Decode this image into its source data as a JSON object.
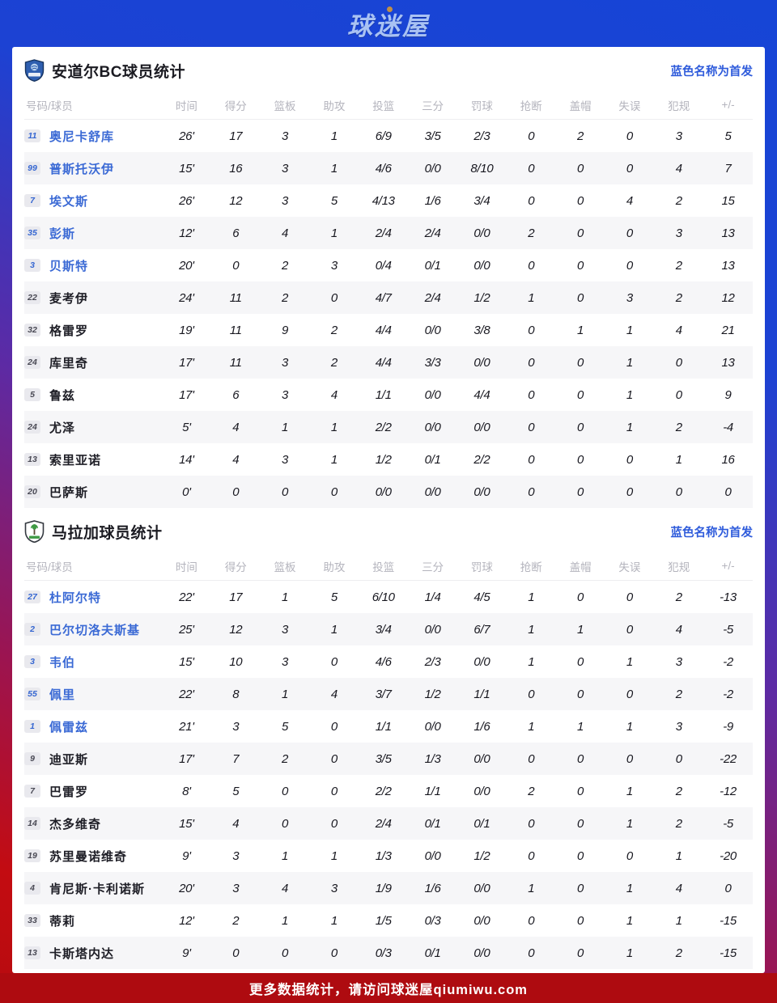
{
  "site": {
    "logo": "球迷屋",
    "footer": "更多数据统计，请访问球迷屋qiumiwu.com"
  },
  "columns": [
    "号码/球员",
    "时间",
    "得分",
    "篮板",
    "助攻",
    "投篮",
    "三分",
    "罚球",
    "抢断",
    "盖帽",
    "失误",
    "犯规",
    "+/-"
  ],
  "colors": {
    "header_blue": "#1645d6",
    "starter_blue": "#3b6ad5",
    "note_blue": "#2e5bdb",
    "footer_red": "#ae0b10",
    "row_stripe": "#f6f6f8"
  },
  "tables": [
    {
      "title": "安道尔BC球员统计",
      "note": "蓝色名称为首发",
      "logo": "andorra-crest-icon",
      "players": [
        {
          "num": "11",
          "name": "奥尼卡舒库",
          "starter": true,
          "stats": [
            "26'",
            "17",
            "3",
            "1",
            "6/9",
            "3/5",
            "2/3",
            "0",
            "2",
            "0",
            "3",
            "5"
          ]
        },
        {
          "num": "99",
          "name": "普斯托沃伊",
          "starter": true,
          "stats": [
            "15'",
            "16",
            "3",
            "1",
            "4/6",
            "0/0",
            "8/10",
            "0",
            "0",
            "0",
            "4",
            "7"
          ]
        },
        {
          "num": "7",
          "name": "埃文斯",
          "starter": true,
          "stats": [
            "26'",
            "12",
            "3",
            "5",
            "4/13",
            "1/6",
            "3/4",
            "0",
            "0",
            "4",
            "2",
            "15"
          ]
        },
        {
          "num": "35",
          "name": "彭斯",
          "starter": true,
          "stats": [
            "12'",
            "6",
            "4",
            "1",
            "2/4",
            "2/4",
            "0/0",
            "2",
            "0",
            "0",
            "3",
            "13"
          ]
        },
        {
          "num": "3",
          "name": "贝斯特",
          "starter": true,
          "stats": [
            "20'",
            "0",
            "2",
            "3",
            "0/4",
            "0/1",
            "0/0",
            "0",
            "0",
            "0",
            "2",
            "13"
          ]
        },
        {
          "num": "22",
          "name": "麦考伊",
          "starter": false,
          "stats": [
            "24'",
            "11",
            "2",
            "0",
            "4/7",
            "2/4",
            "1/2",
            "1",
            "0",
            "3",
            "2",
            "12"
          ]
        },
        {
          "num": "32",
          "name": "格雷罗",
          "starter": false,
          "stats": [
            "19'",
            "11",
            "9",
            "2",
            "4/4",
            "0/0",
            "3/8",
            "0",
            "1",
            "1",
            "4",
            "21"
          ]
        },
        {
          "num": "24",
          "name": "库里奇",
          "starter": false,
          "stats": [
            "17'",
            "11",
            "3",
            "2",
            "4/4",
            "3/3",
            "0/0",
            "0",
            "0",
            "1",
            "0",
            "13"
          ]
        },
        {
          "num": "5",
          "name": "鲁兹",
          "starter": false,
          "stats": [
            "17'",
            "6",
            "3",
            "4",
            "1/1",
            "0/0",
            "4/4",
            "0",
            "0",
            "1",
            "0",
            "9"
          ]
        },
        {
          "num": "24",
          "name": "尤泽",
          "starter": false,
          "stats": [
            "5'",
            "4",
            "1",
            "1",
            "2/2",
            "0/0",
            "0/0",
            "0",
            "0",
            "1",
            "2",
            "-4"
          ]
        },
        {
          "num": "13",
          "name": "索里亚诺",
          "starter": false,
          "stats": [
            "14'",
            "4",
            "3",
            "1",
            "1/2",
            "0/1",
            "2/2",
            "0",
            "0",
            "0",
            "1",
            "16"
          ]
        },
        {
          "num": "20",
          "name": "巴萨斯",
          "starter": false,
          "stats": [
            "0'",
            "0",
            "0",
            "0",
            "0/0",
            "0/0",
            "0/0",
            "0",
            "0",
            "0",
            "0",
            "0"
          ]
        }
      ]
    },
    {
      "title": "马拉加球员统计",
      "note": "蓝色名称为首发",
      "logo": "malaga-crest-icon",
      "players": [
        {
          "num": "27",
          "name": "杜阿尔特",
          "starter": true,
          "stats": [
            "22'",
            "17",
            "1",
            "5",
            "6/10",
            "1/4",
            "4/5",
            "1",
            "0",
            "0",
            "2",
            "-13"
          ]
        },
        {
          "num": "2",
          "name": "巴尔切洛夫斯基",
          "starter": true,
          "stats": [
            "25'",
            "12",
            "3",
            "1",
            "3/4",
            "0/0",
            "6/7",
            "1",
            "1",
            "0",
            "4",
            "-5"
          ]
        },
        {
          "num": "3",
          "name": "韦伯",
          "starter": true,
          "stats": [
            "15'",
            "10",
            "3",
            "0",
            "4/6",
            "2/3",
            "0/0",
            "1",
            "0",
            "1",
            "3",
            "-2"
          ]
        },
        {
          "num": "55",
          "name": "佩里",
          "starter": true,
          "stats": [
            "22'",
            "8",
            "1",
            "4",
            "3/7",
            "1/2",
            "1/1",
            "0",
            "0",
            "0",
            "2",
            "-2"
          ]
        },
        {
          "num": "1",
          "name": "佩雷兹",
          "starter": true,
          "stats": [
            "21'",
            "3",
            "5",
            "0",
            "1/1",
            "0/0",
            "1/6",
            "1",
            "1",
            "1",
            "3",
            "-9"
          ]
        },
        {
          "num": "9",
          "name": "迪亚斯",
          "starter": false,
          "stats": [
            "17'",
            "7",
            "2",
            "0",
            "3/5",
            "1/3",
            "0/0",
            "0",
            "0",
            "0",
            "0",
            "-22"
          ]
        },
        {
          "num": "7",
          "name": "巴雷罗",
          "starter": false,
          "stats": [
            "8'",
            "5",
            "0",
            "0",
            "2/2",
            "1/1",
            "0/0",
            "2",
            "0",
            "1",
            "2",
            "-12"
          ]
        },
        {
          "num": "14",
          "name": "杰多维奇",
          "starter": false,
          "stats": [
            "15'",
            "4",
            "0",
            "0",
            "2/4",
            "0/1",
            "0/1",
            "0",
            "0",
            "1",
            "2",
            "-5"
          ]
        },
        {
          "num": "19",
          "name": "苏里曼诺维奇",
          "starter": false,
          "stats": [
            "9'",
            "3",
            "1",
            "1",
            "1/3",
            "0/0",
            "1/2",
            "0",
            "0",
            "0",
            "1",
            "-20"
          ]
        },
        {
          "num": "4",
          "name": "肯尼斯·卡利诺斯",
          "starter": false,
          "stats": [
            "20'",
            "3",
            "4",
            "3",
            "1/9",
            "1/6",
            "0/0",
            "1",
            "0",
            "1",
            "4",
            "0"
          ]
        },
        {
          "num": "33",
          "name": "蒂莉",
          "starter": false,
          "stats": [
            "12'",
            "2",
            "1",
            "1",
            "1/5",
            "0/3",
            "0/0",
            "0",
            "0",
            "1",
            "1",
            "-15"
          ]
        },
        {
          "num": "13",
          "name": "卡斯塔内达",
          "starter": false,
          "stats": [
            "9'",
            "0",
            "0",
            "0",
            "0/3",
            "0/1",
            "0/0",
            "0",
            "0",
            "1",
            "2",
            "-15"
          ]
        }
      ]
    }
  ]
}
